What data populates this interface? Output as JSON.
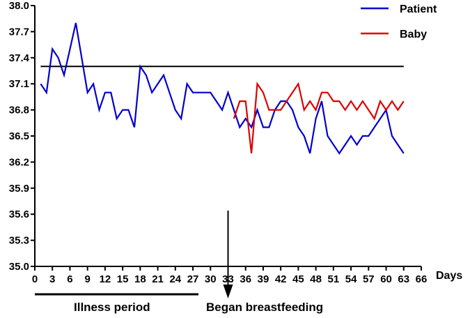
{
  "chart_data": {
    "type": "line",
    "title": "",
    "xlabel": "Days",
    "ylabel": "",
    "xlim": [
      0,
      66
    ],
    "ylim": [
      35.0,
      38.0
    ],
    "x_ticks": [
      0,
      3,
      6,
      9,
      12,
      15,
      18,
      21,
      24,
      27,
      30,
      33,
      36,
      39,
      42,
      45,
      48,
      51,
      54,
      57,
      60,
      63,
      66
    ],
    "x_tick_labels": [
      "0",
      "3",
      "6",
      "9",
      "12",
      "15",
      "18",
      "21",
      "24",
      "27",
      "30",
      "33",
      "36",
      "39",
      "42",
      "45",
      "48",
      "51",
      "54",
      "57",
      "60",
      "63",
      "66"
    ],
    "y_ticks": [
      35.0,
      35.3,
      35.6,
      35.9,
      36.2,
      36.5,
      36.8,
      37.1,
      37.4,
      37.7,
      38.0
    ],
    "y_tick_labels": [
      "35.0",
      "35.3",
      "35.6",
      "35.9",
      "36.2",
      "36.5",
      "36.8",
      "37.1",
      "37.4",
      "37.7",
      "38.0"
    ],
    "grid": false,
    "legend_position": "top-right",
    "reference_line": {
      "y": 37.3,
      "x_start": 1,
      "x_end": 63,
      "color": "#000000"
    },
    "series": [
      {
        "name": "Patient",
        "color": "#0000cc",
        "points": [
          [
            1,
            37.1
          ],
          [
            2,
            37.0
          ],
          [
            3,
            37.5
          ],
          [
            4,
            37.4
          ],
          [
            5,
            37.2
          ],
          [
            6,
            37.5
          ],
          [
            7,
            37.8
          ],
          [
            8,
            37.4
          ],
          [
            9,
            37.0
          ],
          [
            10,
            37.1
          ],
          [
            11,
            36.8
          ],
          [
            12,
            37.0
          ],
          [
            13,
            37.0
          ],
          [
            14,
            36.7
          ],
          [
            15,
            36.8
          ],
          [
            16,
            36.8
          ],
          [
            17,
            36.6
          ],
          [
            18,
            37.3
          ],
          [
            19,
            37.2
          ],
          [
            20,
            37.0
          ],
          [
            21,
            37.1
          ],
          [
            22,
            37.2
          ],
          [
            23,
            37.0
          ],
          [
            24,
            36.8
          ],
          [
            25,
            36.7
          ],
          [
            26,
            37.1
          ],
          [
            27,
            37.0
          ],
          [
            28,
            37.0
          ],
          [
            29,
            37.0
          ],
          [
            30,
            37.0
          ],
          [
            31,
            36.9
          ],
          [
            32,
            36.8
          ],
          [
            33,
            37.0
          ],
          [
            34,
            36.8
          ],
          [
            35,
            36.6
          ],
          [
            36,
            36.7
          ],
          [
            37,
            36.6
          ],
          [
            38,
            36.8
          ],
          [
            39,
            36.6
          ],
          [
            40,
            36.6
          ],
          [
            41,
            36.8
          ],
          [
            42,
            36.9
          ],
          [
            43,
            36.9
          ],
          [
            44,
            36.8
          ],
          [
            45,
            36.6
          ],
          [
            46,
            36.5
          ],
          [
            47,
            36.3
          ],
          [
            48,
            36.7
          ],
          [
            49,
            36.9
          ],
          [
            50,
            36.5
          ],
          [
            51,
            36.4
          ],
          [
            52,
            36.3
          ],
          [
            53,
            36.4
          ],
          [
            54,
            36.5
          ],
          [
            55,
            36.4
          ],
          [
            56,
            36.5
          ],
          [
            57,
            36.5
          ],
          [
            58,
            36.6
          ],
          [
            59,
            36.7
          ],
          [
            60,
            36.8
          ],
          [
            61,
            36.5
          ],
          [
            62,
            36.4
          ],
          [
            63,
            36.3
          ]
        ]
      },
      {
        "name": "Baby",
        "color": "#dd0000",
        "points": [
          [
            34,
            36.7
          ],
          [
            35,
            36.9
          ],
          [
            36,
            36.9
          ],
          [
            37,
            36.3
          ],
          [
            38,
            37.1
          ],
          [
            39,
            37.0
          ],
          [
            40,
            36.8
          ],
          [
            41,
            36.8
          ],
          [
            42,
            36.8
          ],
          [
            43,
            36.9
          ],
          [
            44,
            37.0
          ],
          [
            45,
            37.1
          ],
          [
            46,
            36.8
          ],
          [
            47,
            36.9
          ],
          [
            48,
            36.8
          ],
          [
            49,
            37.0
          ],
          [
            50,
            37.0
          ],
          [
            51,
            36.9
          ],
          [
            52,
            36.9
          ],
          [
            53,
            36.8
          ],
          [
            54,
            36.9
          ],
          [
            55,
            36.8
          ],
          [
            56,
            36.9
          ],
          [
            57,
            36.8
          ],
          [
            58,
            36.7
          ],
          [
            59,
            36.9
          ],
          [
            60,
            36.8
          ],
          [
            61,
            36.9
          ],
          [
            62,
            36.8
          ],
          [
            63,
            36.9
          ]
        ]
      }
    ],
    "annotations": {
      "illness_period": {
        "label": "Illness period",
        "x_start": 0,
        "x_end": 27
      },
      "breastfeeding": {
        "label": "Began breastfeeding",
        "x": 33
      }
    }
  }
}
